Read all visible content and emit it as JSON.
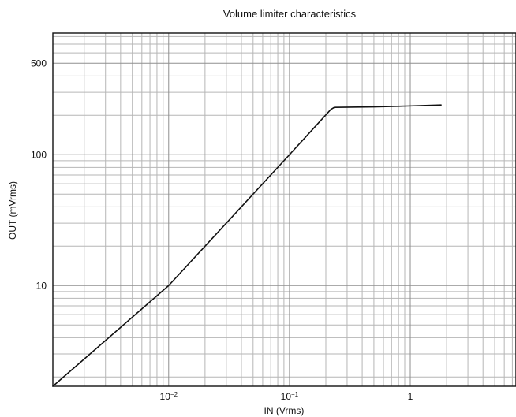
{
  "chart_data": {
    "type": "line",
    "title": "Volume limiter characteristics",
    "xlabel": "IN (Vrms)",
    "ylabel": "OUT (mVrms)",
    "xscale": "log",
    "yscale": "log",
    "xlim": [
      0.0011,
      7.5
    ],
    "ylim": [
      1.7,
      850
    ],
    "x_ticks": [
      {
        "value": 0.01,
        "base": "10",
        "exp": "−2"
      },
      {
        "value": 0.1,
        "base": "10",
        "exp": "−1"
      },
      {
        "value": 1,
        "label": "1"
      }
    ],
    "y_ticks": [
      {
        "value": 10,
        "label": "10"
      },
      {
        "value": 100,
        "label": "100"
      },
      {
        "value": 500,
        "label": "500"
      }
    ],
    "grid": true,
    "series": [
      {
        "x": [
          0.0011,
          0.01,
          0.1,
          0.22,
          0.235,
          0.5,
          1,
          1.8
        ],
        "y": [
          1.7,
          10,
          100,
          222,
          230,
          232,
          236,
          240
        ]
      }
    ],
    "colors": {
      "line": "#111111",
      "frame": "#111111",
      "grid": "#8f8f8f",
      "minor_grid": "#b6b6b6"
    }
  }
}
